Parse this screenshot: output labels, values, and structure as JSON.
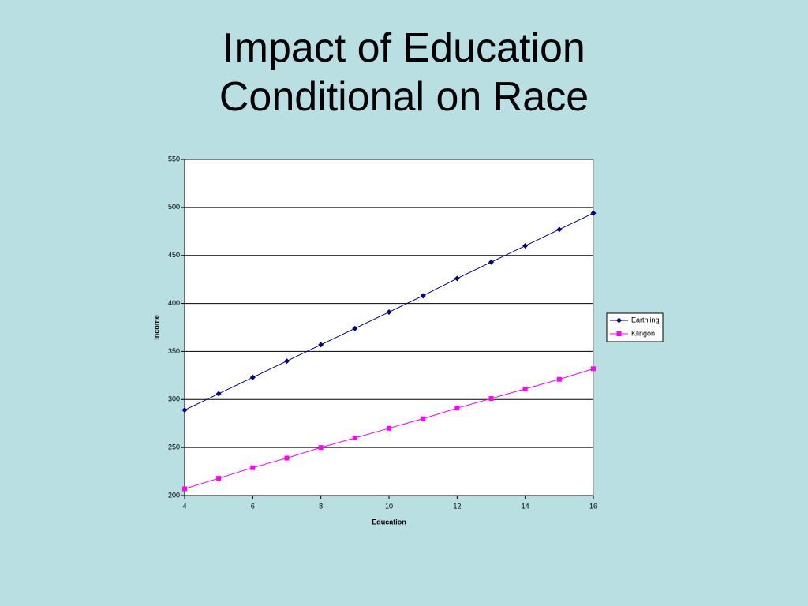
{
  "chart_data": {
    "type": "line",
    "title": "Impact of Education Conditional on Race",
    "x_label": "Education",
    "y_label": "Income",
    "x": [
      4,
      5,
      6,
      7,
      8,
      9,
      10,
      11,
      12,
      13,
      14,
      15,
      16
    ],
    "series": [
      {
        "name": "Earthling",
        "color": "#000080",
        "marker": "diamond",
        "values": [
          289,
          306,
          323,
          340,
          357,
          374,
          391,
          408,
          426,
          443,
          460,
          477,
          494
        ]
      },
      {
        "name": "Klingon",
        "color": "#ff00ff",
        "marker": "square",
        "values": [
          207,
          218,
          229,
          239,
          250,
          260,
          270,
          280,
          291,
          301,
          311,
          321,
          332
        ]
      }
    ],
    "xlim": [
      4,
      16
    ],
    "xticks": [
      4,
      6,
      8,
      10,
      12,
      14,
      16
    ],
    "ylim": [
      200,
      550
    ],
    "yticks": [
      200,
      250,
      300,
      350,
      400,
      450,
      500,
      550
    ],
    "grid": true,
    "legend": "right"
  }
}
